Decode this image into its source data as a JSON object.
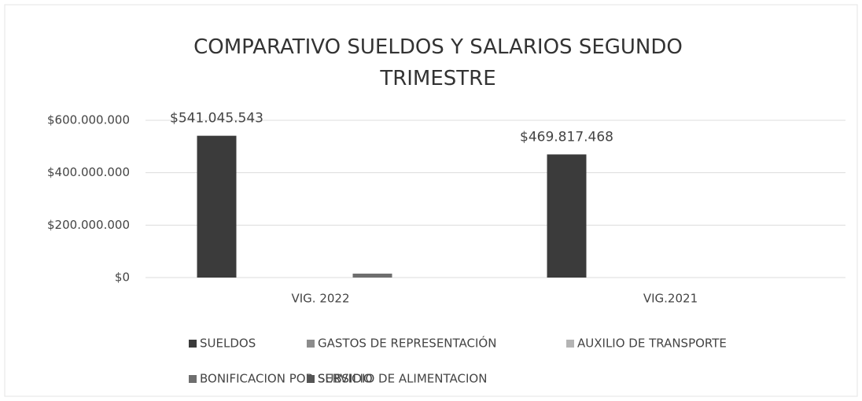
{
  "chart_data": {
    "type": "bar",
    "title": "COMPARATIVO SUELDOS Y SALARIOS SEGUNDO TRIMESTRE",
    "categories": [
      "VIG. 2022",
      "VIG.2021"
    ],
    "series": [
      {
        "name": "SUELDOS",
        "color": "#3b3b3b",
        "values": [
          541045543,
          469817468
        ],
        "value_labels": [
          "$541.045.543",
          "$469.817.468"
        ]
      },
      {
        "name": "GASTOS DE REPRESENTACIÓN",
        "color": "#8c8c8c",
        "values": [
          0,
          0
        ]
      },
      {
        "name": "AUXILIO DE TRANSPORTE",
        "color": "#b4b4b4",
        "values": [
          0,
          0
        ]
      },
      {
        "name": "BONIFICACION POR SERVICIO",
        "color": "#6e6e6e",
        "values": [
          15000000,
          0
        ]
      },
      {
        "name": "SUBSIDIO DE ALIMENTACION",
        "color": "#555555",
        "values": [
          0,
          0
        ]
      }
    ],
    "ylim": [
      0,
      600000000
    ],
    "yticks": [
      {
        "value": 0,
        "label": "$0"
      },
      {
        "value": 200000000,
        "label": "$200.000.000"
      },
      {
        "value": 400000000,
        "label": "$400.000.000"
      },
      {
        "value": 600000000,
        "label": "$600.000.000"
      }
    ],
    "grid": true,
    "legend": "bottom"
  }
}
